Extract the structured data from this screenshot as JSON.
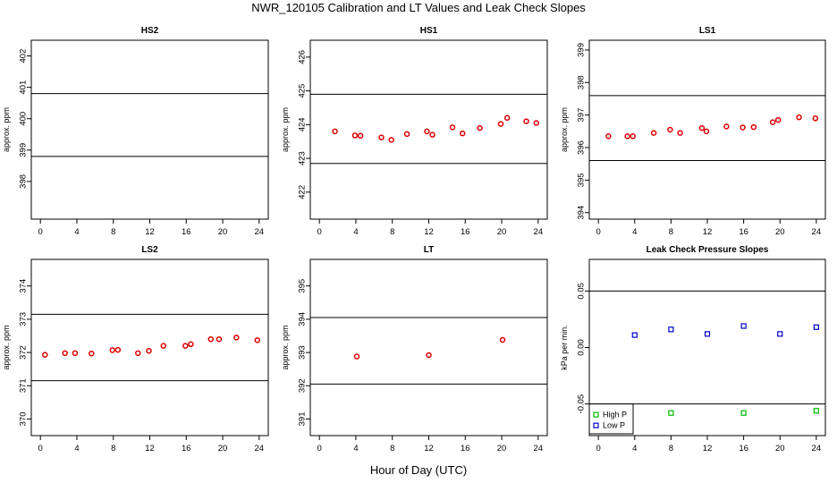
{
  "title": "NWR_120105  Calibration and LT Values and Leak Check Slopes",
  "xlabel": "Hour of Day (UTC)",
  "colors": {
    "calibration": "#dd0000",
    "high_p": "#00bb00",
    "low_p": "#0000cc",
    "lines": "#000000"
  },
  "chart_data": [
    {
      "type": "scatter",
      "title": "HS2",
      "ylabel": "approx. ppm",
      "xlim": [
        -1,
        25
      ],
      "ylim": [
        396.8,
        402.5
      ],
      "xticks": [
        0,
        4,
        8,
        12,
        16,
        20,
        24
      ],
      "yticks": [
        398,
        399,
        400,
        401,
        402
      ],
      "hlines": [
        398.8,
        400.8
      ],
      "series": [
        {
          "marker": "circle",
          "color": "#dd0000",
          "x": [],
          "y": []
        }
      ]
    },
    {
      "type": "scatter",
      "title": "HS1",
      "ylabel": "approx. ppm",
      "xlim": [
        -1,
        25
      ],
      "ylim": [
        421.2,
        426.5
      ],
      "xticks": [
        0,
        4,
        8,
        12,
        16,
        20,
        24
      ],
      "yticks": [
        422,
        423,
        424,
        425,
        426
      ],
      "hlines": [
        422.85,
        424.9
      ],
      "series": [
        {
          "marker": "circle",
          "color": "#dd0000",
          "x": [
            1.7,
            3.9,
            4.5,
            6.8,
            7.9,
            9.6,
            11.8,
            12.4,
            14.6,
            15.7,
            17.6,
            19.9,
            20.6,
            22.7,
            23.8
          ],
          "y": [
            423.8,
            423.68,
            423.67,
            423.62,
            423.55,
            423.72,
            423.8,
            423.7,
            423.92,
            423.74,
            423.9,
            424.02,
            424.2,
            424.1,
            424.05
          ]
        }
      ]
    },
    {
      "type": "scatter",
      "title": "LS1",
      "ylabel": "approx. ppm",
      "xlim": [
        -1,
        25
      ],
      "ylim": [
        393.8,
        399.3
      ],
      "xticks": [
        0,
        4,
        8,
        12,
        16,
        20,
        24
      ],
      "yticks": [
        394,
        395,
        396,
        397,
        398,
        399
      ],
      "hlines": [
        395.6,
        397.6
      ],
      "series": [
        {
          "marker": "circle",
          "color": "#dd0000",
          "x": [
            1.1,
            3.2,
            3.8,
            6.1,
            7.9,
            9.0,
            11.4,
            11.9,
            14.1,
            15.9,
            17.1,
            19.2,
            19.8,
            22.1,
            23.9
          ],
          "y": [
            396.35,
            396.35,
            396.35,
            396.45,
            396.55,
            396.45,
            396.6,
            396.5,
            396.65,
            396.62,
            396.63,
            396.78,
            396.85,
            396.93,
            396.9
          ]
        }
      ]
    },
    {
      "type": "scatter",
      "title": "LS2",
      "ylabel": "approx. ppm",
      "xlim": [
        -1,
        25
      ],
      "ylim": [
        369.5,
        374.8
      ],
      "xticks": [
        0,
        4,
        8,
        12,
        16,
        20,
        24
      ],
      "yticks": [
        370,
        371,
        372,
        373,
        374
      ],
      "hlines": [
        371.15,
        373.15
      ],
      "series": [
        {
          "marker": "circle",
          "color": "#dd0000",
          "x": [
            0.5,
            2.7,
            3.8,
            5.6,
            7.9,
            8.5,
            10.7,
            11.9,
            13.5,
            15.9,
            16.5,
            18.7,
            19.6,
            21.5,
            23.8
          ],
          "y": [
            371.93,
            371.98,
            371.98,
            371.97,
            372.07,
            372.08,
            371.98,
            372.05,
            372.2,
            372.2,
            372.25,
            372.4,
            372.4,
            372.45,
            372.37
          ]
        }
      ]
    },
    {
      "type": "scatter",
      "title": "LT",
      "ylabel": "approx. ppm",
      "xlim": [
        -1,
        25
      ],
      "ylim": [
        390.5,
        395.8
      ],
      "xticks": [
        0,
        4,
        8,
        12,
        16,
        20,
        24
      ],
      "yticks": [
        391,
        392,
        393,
        394,
        395
      ],
      "hlines": [
        392.05,
        394.05
      ],
      "series": [
        {
          "marker": "circle",
          "color": "#dd0000",
          "x": [
            4.1,
            12.0,
            20.1
          ],
          "y": [
            392.88,
            392.92,
            393.38
          ]
        }
      ]
    },
    {
      "type": "scatter",
      "title": "Leak Check Pressure Slopes",
      "ylabel": "kPa per min.",
      "xlim": [
        -1,
        25
      ],
      "ylim": [
        -0.078,
        0.078
      ],
      "xticks": [
        0,
        4,
        8,
        12,
        16,
        20,
        24
      ],
      "yticks": [
        -0.05,
        0.0,
        0.05
      ],
      "ytick_labels": [
        "-0.05",
        "0.00",
        "0.05"
      ],
      "hlines": [
        -0.05,
        0.05
      ],
      "legend": "bottom-left",
      "series": [
        {
          "name": "High P",
          "marker": "square",
          "color": "#00bb00",
          "x": [
            8.0,
            16.0,
            24.0
          ],
          "y": [
            -0.058,
            -0.058,
            -0.056
          ]
        },
        {
          "name": "Low P",
          "marker": "square",
          "color": "#0000cc",
          "x": [
            4.0,
            8.0,
            12.0,
            16.0,
            20.0,
            24.0
          ],
          "y": [
            0.011,
            0.016,
            0.012,
            0.019,
            0.012,
            0.018
          ]
        }
      ]
    }
  ]
}
